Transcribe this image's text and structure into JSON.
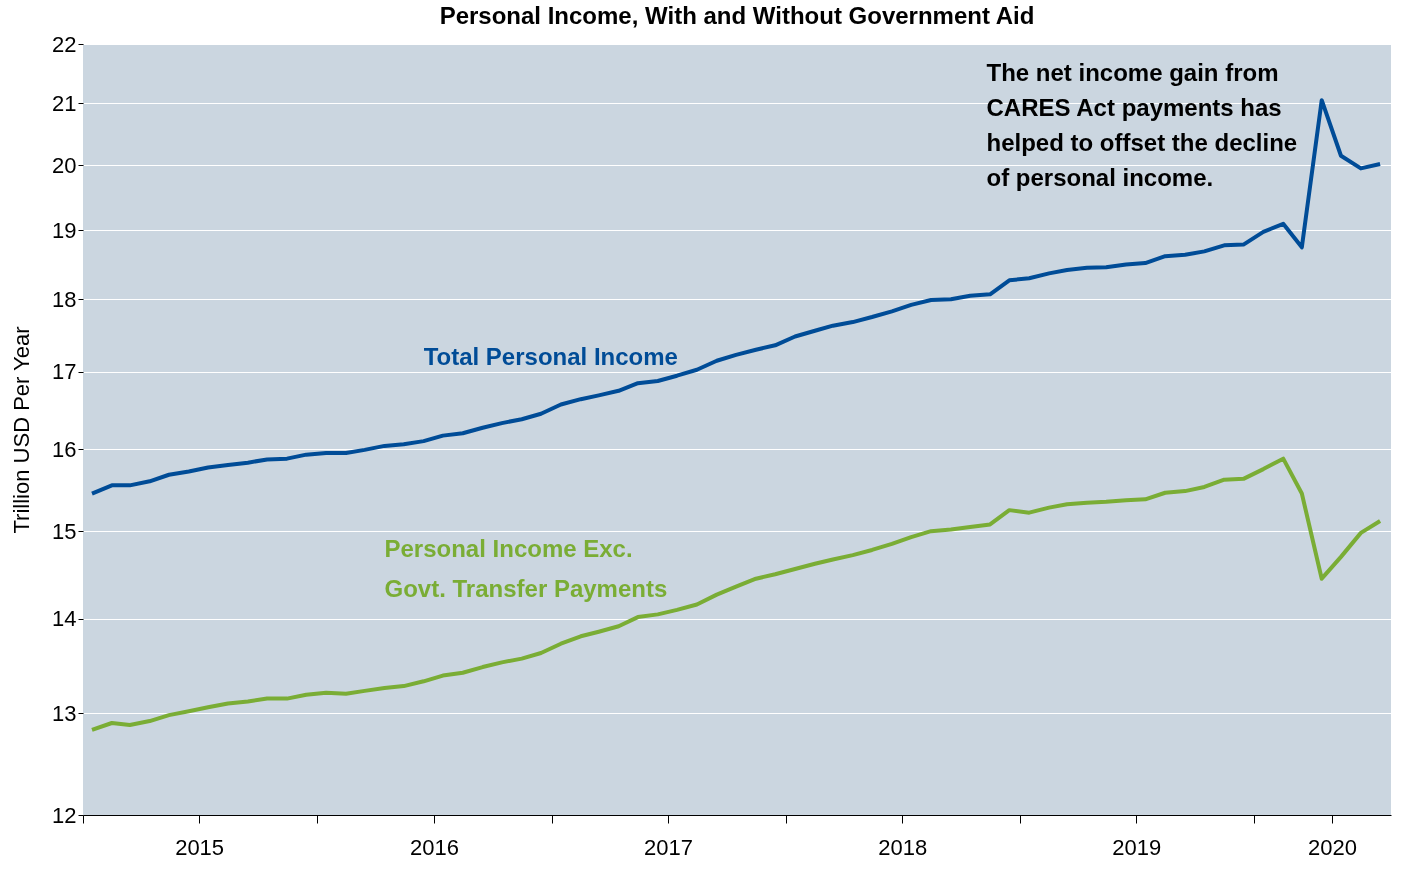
{
  "chart_data": {
    "type": "line",
    "title": "Personal Income, With and Without Government Aid",
    "ylabel": "Trillion USD Per Year",
    "x": [
      "2015-01-15",
      "2015-02-15",
      "2015-03-15",
      "2015-04-15",
      "2015-05-15",
      "2015-06-15",
      "2015-07-15",
      "2015-08-15",
      "2015-09-15",
      "2015-10-15",
      "2015-11-15",
      "2015-12-15",
      "2016-01-15",
      "2016-02-15",
      "2016-03-15",
      "2016-04-15",
      "2016-05-15",
      "2016-06-15",
      "2016-07-15",
      "2016-08-15",
      "2016-09-15",
      "2016-10-15",
      "2016-11-15",
      "2016-12-15",
      "2017-01-15",
      "2017-02-15",
      "2017-03-15",
      "2017-04-15",
      "2017-05-15",
      "2017-06-15",
      "2017-07-15",
      "2017-08-15",
      "2017-09-15",
      "2017-10-15",
      "2017-11-15",
      "2017-12-15",
      "2018-01-15",
      "2018-02-15",
      "2018-03-15",
      "2018-04-15",
      "2018-05-15",
      "2018-06-15",
      "2018-07-15",
      "2018-08-15",
      "2018-09-15",
      "2018-10-15",
      "2018-11-15",
      "2018-12-15",
      "2019-01-15",
      "2019-02-15",
      "2019-03-15",
      "2019-04-15",
      "2019-05-15",
      "2019-06-15",
      "2019-07-15",
      "2019-08-15",
      "2019-09-15",
      "2019-10-15",
      "2019-11-15",
      "2019-12-15",
      "2020-01-15",
      "2020-02-15",
      "2020-03-15",
      "2020-04-15",
      "2020-05-15",
      "2020-06-15",
      "2020-07-15"
    ],
    "series": [
      {
        "name": "Total Personal Income",
        "color": "#004c97",
        "values": [
          15.45,
          15.55,
          15.55,
          15.6,
          15.68,
          15.72,
          15.77,
          15.8,
          15.83,
          15.87,
          15.88,
          15.93,
          15.95,
          15.95,
          15.99,
          16.04,
          16.06,
          16.1,
          16.17,
          16.2,
          16.27,
          16.33,
          16.38,
          16.45,
          16.57,
          16.64,
          16.69,
          16.75,
          16.85,
          16.88,
          16.95,
          17.03,
          17.15,
          17.23,
          17.3,
          17.36,
          17.48,
          17.56,
          17.63,
          17.68,
          17.75,
          17.83,
          17.92,
          17.99,
          18.0,
          18.05,
          18.07,
          18.27,
          18.3,
          18.37,
          18.42,
          18.45,
          18.46,
          18.5,
          18.52,
          18.62,
          18.64,
          18.69,
          18.78,
          18.79,
          18.98,
          19.1,
          18.75,
          21.05,
          20.15,
          19.95,
          20.02
        ]
      },
      {
        "name": "Personal Income Exc. Govt. Transfer Payments",
        "color": "#7aad35",
        "values": [
          12.83,
          12.9,
          12.88,
          12.92,
          12.98,
          13.02,
          13.06,
          13.1,
          13.12,
          13.15,
          13.15,
          13.19,
          13.21,
          13.2,
          13.23,
          13.26,
          13.28,
          13.33,
          13.39,
          13.42,
          13.48,
          13.53,
          13.57,
          13.63,
          13.73,
          13.81,
          13.86,
          13.92,
          14.02,
          14.05,
          14.1,
          14.16,
          14.27,
          14.36,
          14.45,
          14.5,
          14.56,
          14.62,
          14.67,
          14.72,
          14.78,
          14.85,
          14.93,
          15.0,
          15.02,
          15.05,
          15.08,
          15.25,
          15.22,
          15.28,
          15.32,
          15.34,
          15.35,
          15.37,
          15.38,
          15.46,
          15.48,
          15.53,
          15.62,
          15.63,
          15.75,
          15.88,
          15.45,
          14.45,
          14.7,
          14.98,
          15.12
        ]
      }
    ],
    "xlim": [
      "2015-01-01",
      "2020-08-01"
    ],
    "xticks": [
      {
        "value": "2015-01-01",
        "label": null
      },
      {
        "value": "2015-07-01",
        "label": "2015"
      },
      {
        "value": "2016-01-01",
        "label": null
      },
      {
        "value": "2016-07-01",
        "label": "2016"
      },
      {
        "value": "2017-01-01",
        "label": null
      },
      {
        "value": "2017-07-01",
        "label": "2017"
      },
      {
        "value": "2018-01-01",
        "label": null
      },
      {
        "value": "2018-07-01",
        "label": "2018"
      },
      {
        "value": "2019-01-01",
        "label": null
      },
      {
        "value": "2019-07-01",
        "label": "2019"
      },
      {
        "value": "2020-01-01",
        "label": null
      },
      {
        "value": "2020-05-01",
        "label": "2020"
      }
    ],
    "ylim": [
      12,
      22
    ],
    "yticks": [
      12,
      13,
      14,
      15,
      16,
      17,
      18,
      19,
      20,
      21,
      22
    ],
    "log": "y",
    "grid": "y",
    "annotations": [
      "The net income gain from CARES Act payments has helped to offset the decline of personal income."
    ]
  }
}
